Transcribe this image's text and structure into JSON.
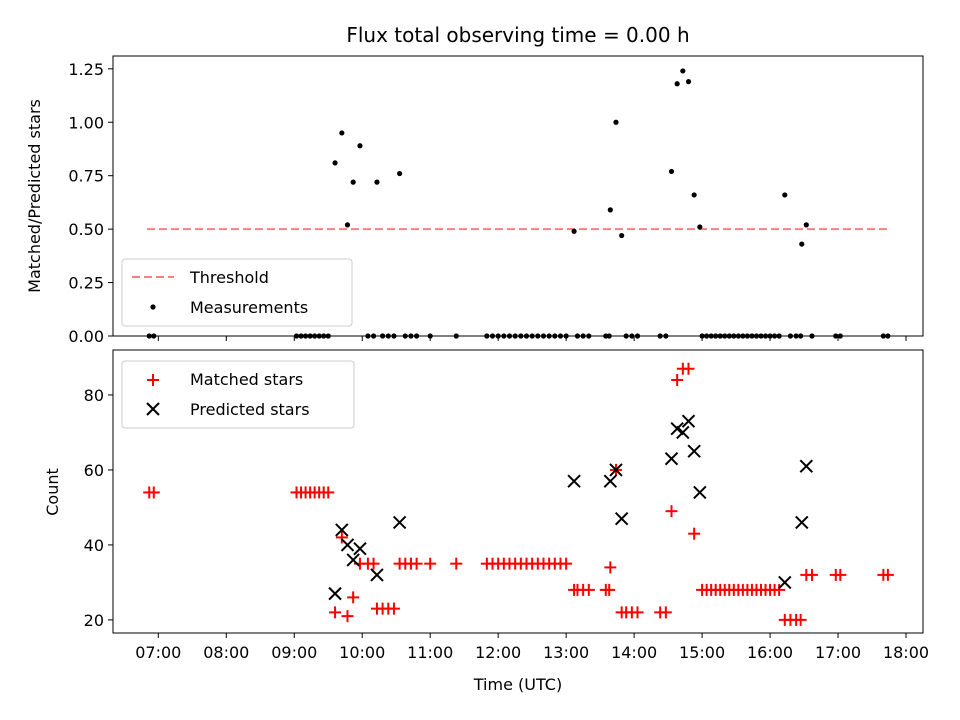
{
  "figure": {
    "title": "Flux total observing time = 0.00 h"
  },
  "colors": {
    "threshold": "#ff7f7f",
    "measurements": "#000000",
    "matched": "#ff0000",
    "predicted": "#000000"
  },
  "chart_data": [
    {
      "type": "scatter",
      "title": "Flux total observing time = 0.00 h",
      "xlabel": "",
      "ylabel": "Matched/Predicted stars",
      "xlim": [
        "06:20",
        "18:15"
      ],
      "ylim": [
        0,
        1.31
      ],
      "x_ticks": [
        "07:00",
        "08:00",
        "09:00",
        "10:00",
        "11:00",
        "12:00",
        "13:00",
        "14:00",
        "15:00",
        "16:00",
        "17:00",
        "18:00"
      ],
      "y_ticks": [
        "0.00",
        "0.25",
        "0.50",
        "0.75",
        "1.00",
        "1.25"
      ],
      "legend": {
        "position": "lower-left",
        "entries": [
          "Threshold",
          "Measurements"
        ]
      },
      "threshold": {
        "name": "Threshold",
        "style": "dashed",
        "x": [
          "06:50",
          "17:45"
        ],
        "y": 0.5
      },
      "series": [
        {
          "name": "Measurements",
          "marker": "dot",
          "points": [
            [
              "06:52",
              0.0
            ],
            [
              "06:56",
              0.0
            ],
            [
              "09:02",
              0.0
            ],
            [
              "09:06",
              0.0
            ],
            [
              "09:10",
              0.0
            ],
            [
              "09:14",
              0.0
            ],
            [
              "09:18",
              0.0
            ],
            [
              "09:22",
              0.0
            ],
            [
              "09:26",
              0.0
            ],
            [
              "09:30",
              0.0
            ],
            [
              "09:36",
              0.81
            ],
            [
              "09:42",
              0.95
            ],
            [
              "09:47",
              0.52
            ],
            [
              "09:52",
              0.72
            ],
            [
              "09:58",
              0.89
            ],
            [
              "10:05",
              0.0
            ],
            [
              "10:10",
              0.0
            ],
            [
              "10:13",
              0.72
            ],
            [
              "10:18",
              0.0
            ],
            [
              "10:23",
              0.0
            ],
            [
              "10:28",
              0.0
            ],
            [
              "10:33",
              0.76
            ],
            [
              "10:38",
              0.0
            ],
            [
              "10:43",
              0.0
            ],
            [
              "10:48",
              0.0
            ],
            [
              "11:00",
              0.0
            ],
            [
              "11:23",
              0.0
            ],
            [
              "11:50",
              0.0
            ],
            [
              "11:55",
              0.0
            ],
            [
              "12:00",
              0.0
            ],
            [
              "12:05",
              0.0
            ],
            [
              "12:10",
              0.0
            ],
            [
              "12:15",
              0.0
            ],
            [
              "12:20",
              0.0
            ],
            [
              "12:25",
              0.0
            ],
            [
              "12:30",
              0.0
            ],
            [
              "12:35",
              0.0
            ],
            [
              "12:40",
              0.0
            ],
            [
              "12:45",
              0.0
            ],
            [
              "12:50",
              0.0
            ],
            [
              "12:55",
              0.0
            ],
            [
              "13:00",
              0.0
            ],
            [
              "13:07",
              0.49
            ],
            [
              "13:10",
              0.0
            ],
            [
              "13:15",
              0.0
            ],
            [
              "13:20",
              0.0
            ],
            [
              "13:35",
              0.0
            ],
            [
              "13:38",
              0.0
            ],
            [
              "13:39",
              0.59
            ],
            [
              "13:44",
              1.0
            ],
            [
              "13:49",
              0.47
            ],
            [
              "13:53",
              0.0
            ],
            [
              "13:58",
              0.0
            ],
            [
              "14:03",
              0.0
            ],
            [
              "14:23",
              0.0
            ],
            [
              "14:28",
              0.0
            ],
            [
              "14:33",
              0.77
            ],
            [
              "14:38",
              1.18
            ],
            [
              "14:43",
              1.24
            ],
            [
              "14:48",
              1.19
            ],
            [
              "14:53",
              0.66
            ],
            [
              "14:58",
              0.51
            ],
            [
              "15:00",
              0.0
            ],
            [
              "15:04",
              0.0
            ],
            [
              "15:08",
              0.0
            ],
            [
              "15:12",
              0.0
            ],
            [
              "15:16",
              0.0
            ],
            [
              "15:20",
              0.0
            ],
            [
              "15:24",
              0.0
            ],
            [
              "15:28",
              0.0
            ],
            [
              "15:32",
              0.0
            ],
            [
              "15:36",
              0.0
            ],
            [
              "15:40",
              0.0
            ],
            [
              "15:44",
              0.0
            ],
            [
              "15:48",
              0.0
            ],
            [
              "15:52",
              0.0
            ],
            [
              "15:56",
              0.0
            ],
            [
              "16:00",
              0.0
            ],
            [
              "16:04",
              0.0
            ],
            [
              "16:08",
              0.0
            ],
            [
              "16:13",
              0.66
            ],
            [
              "16:18",
              0.0
            ],
            [
              "16:23",
              0.0
            ],
            [
              "16:27",
              0.0
            ],
            [
              "16:28",
              0.43
            ],
            [
              "16:32",
              0.52
            ],
            [
              "16:37",
              0.0
            ],
            [
              "16:58",
              0.0
            ],
            [
              "17:02",
              0.0
            ],
            [
              "17:40",
              0.0
            ],
            [
              "17:44",
              0.0
            ]
          ]
        }
      ]
    },
    {
      "type": "scatter",
      "title": "",
      "xlabel": "Time (UTC)",
      "ylabel": "Count",
      "xlim": [
        "06:20",
        "18:15"
      ],
      "ylim": [
        16.5,
        92
      ],
      "x_ticks": [
        "07:00",
        "08:00",
        "09:00",
        "10:00",
        "11:00",
        "12:00",
        "13:00",
        "14:00",
        "15:00",
        "16:00",
        "17:00",
        "18:00"
      ],
      "y_ticks": [
        "20",
        "40",
        "60",
        "80"
      ],
      "legend": {
        "position": "upper-left",
        "entries": [
          "Matched stars",
          "Predicted stars"
        ]
      },
      "series": [
        {
          "name": "Matched stars",
          "marker": "plus",
          "points": [
            [
              "06:52",
              54
            ],
            [
              "06:56",
              54
            ],
            [
              "09:02",
              54
            ],
            [
              "09:06",
              54
            ],
            [
              "09:10",
              54
            ],
            [
              "09:14",
              54
            ],
            [
              "09:18",
              54
            ],
            [
              "09:22",
              54
            ],
            [
              "09:26",
              54
            ],
            [
              "09:30",
              54
            ],
            [
              "09:36",
              22
            ],
            [
              "09:42",
              42
            ],
            [
              "09:47",
              21
            ],
            [
              "09:52",
              26
            ],
            [
              "09:58",
              35
            ],
            [
              "10:05",
              35
            ],
            [
              "10:10",
              35
            ],
            [
              "10:13",
              23
            ],
            [
              "10:18",
              23
            ],
            [
              "10:23",
              23
            ],
            [
              "10:28",
              23
            ],
            [
              "10:33",
              35
            ],
            [
              "10:38",
              35
            ],
            [
              "10:43",
              35
            ],
            [
              "10:48",
              35
            ],
            [
              "11:00",
              35
            ],
            [
              "11:23",
              35
            ],
            [
              "11:50",
              35
            ],
            [
              "11:55",
              35
            ],
            [
              "12:00",
              35
            ],
            [
              "12:05",
              35
            ],
            [
              "12:10",
              35
            ],
            [
              "12:15",
              35
            ],
            [
              "12:20",
              35
            ],
            [
              "12:25",
              35
            ],
            [
              "12:30",
              35
            ],
            [
              "12:35",
              35
            ],
            [
              "12:40",
              35
            ],
            [
              "12:45",
              35
            ],
            [
              "12:50",
              35
            ],
            [
              "12:55",
              35
            ],
            [
              "13:00",
              35
            ],
            [
              "13:07",
              28
            ],
            [
              "13:10",
              28
            ],
            [
              "13:15",
              28
            ],
            [
              "13:20",
              28
            ],
            [
              "13:35",
              28
            ],
            [
              "13:38",
              28
            ],
            [
              "13:39",
              34
            ],
            [
              "13:44",
              60
            ],
            [
              "13:49",
              22
            ],
            [
              "13:53",
              22
            ],
            [
              "13:58",
              22
            ],
            [
              "14:03",
              22
            ],
            [
              "14:23",
              22
            ],
            [
              "14:28",
              22
            ],
            [
              "14:33",
              49
            ],
            [
              "14:38",
              84
            ],
            [
              "14:43",
              87
            ],
            [
              "14:48",
              87
            ],
            [
              "14:53",
              43
            ],
            [
              "15:00",
              28
            ],
            [
              "15:04",
              28
            ],
            [
              "15:08",
              28
            ],
            [
              "15:12",
              28
            ],
            [
              "15:16",
              28
            ],
            [
              "15:20",
              28
            ],
            [
              "15:24",
              28
            ],
            [
              "15:28",
              28
            ],
            [
              "15:32",
              28
            ],
            [
              "15:36",
              28
            ],
            [
              "15:40",
              28
            ],
            [
              "15:44",
              28
            ],
            [
              "15:48",
              28
            ],
            [
              "15:52",
              28
            ],
            [
              "15:56",
              28
            ],
            [
              "16:00",
              28
            ],
            [
              "16:04",
              28
            ],
            [
              "16:08",
              28
            ],
            [
              "16:13",
              20
            ],
            [
              "16:18",
              20
            ],
            [
              "16:23",
              20
            ],
            [
              "16:27",
              20
            ],
            [
              "16:32",
              32
            ],
            [
              "16:37",
              32
            ],
            [
              "16:58",
              32
            ],
            [
              "17:02",
              32
            ],
            [
              "17:40",
              32
            ],
            [
              "17:44",
              32
            ]
          ]
        },
        {
          "name": "Predicted stars",
          "marker": "x",
          "points": [
            [
              "09:36",
              27
            ],
            [
              "09:42",
              44
            ],
            [
              "09:47",
              40
            ],
            [
              "09:52",
              36
            ],
            [
              "09:58",
              39
            ],
            [
              "10:13",
              32
            ],
            [
              "10:33",
              46
            ],
            [
              "13:07",
              57
            ],
            [
              "13:39",
              57
            ],
            [
              "13:44",
              60
            ],
            [
              "13:49",
              47
            ],
            [
              "14:33",
              63
            ],
            [
              "14:38",
              71
            ],
            [
              "14:43",
              70
            ],
            [
              "14:48",
              73
            ],
            [
              "14:53",
              65
            ],
            [
              "14:58",
              54
            ],
            [
              "16:13",
              30
            ],
            [
              "16:28",
              46
            ],
            [
              "16:32",
              61
            ]
          ]
        }
      ]
    }
  ]
}
